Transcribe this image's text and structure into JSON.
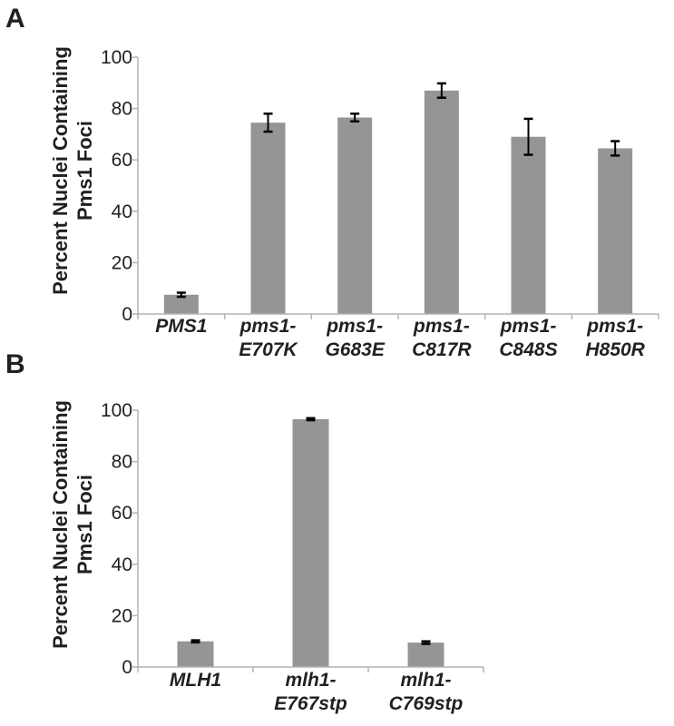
{
  "chart_data": [
    {
      "panel": "A",
      "type": "bar",
      "ylabel_lines": [
        "Percent Nuclei Containing",
        "Pms1 Foci"
      ],
      "categories": [
        [
          "PMS1"
        ],
        [
          "pms1-",
          "E707K"
        ],
        [
          "pms1-",
          "G683E"
        ],
        [
          "pms1-",
          "C817R"
        ],
        [
          "pms1-",
          "C848S"
        ],
        [
          "pms1-",
          "H850R"
        ]
      ],
      "values": [
        7.5,
        74.5,
        76.5,
        87,
        69,
        64.5
      ],
      "errors": [
        0.8,
        3.5,
        1.5,
        2.8,
        7,
        2.8
      ],
      "ylim": [
        0,
        100
      ],
      "yticks": [
        0,
        20,
        40,
        60,
        80,
        100
      ],
      "grid": false
    },
    {
      "panel": "B",
      "type": "bar",
      "ylabel_lines": [
        "Percent Nuclei Containing",
        "Pms1 Foci"
      ],
      "categories": [
        [
          "MLH1"
        ],
        [
          "mlh1-",
          "E767stp"
        ],
        [
          "mlh1-",
          "C769stp"
        ]
      ],
      "values": [
        10,
        96.5,
        9.5
      ],
      "errors": [
        0.4,
        0.4,
        0.5
      ],
      "ylim": [
        0,
        100
      ],
      "yticks": [
        0,
        20,
        40,
        60,
        80,
        100
      ],
      "grid": false
    }
  ],
  "colors": {
    "bar": "#959595",
    "axis": "#b3b3b3",
    "error": "#000000",
    "text": "#231f20"
  }
}
